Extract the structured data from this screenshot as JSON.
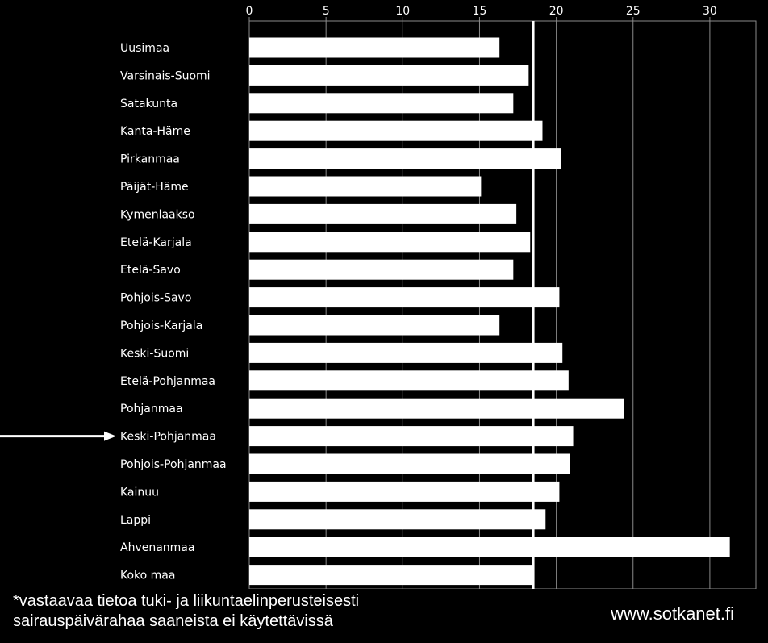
{
  "chart_data": {
    "type": "bar",
    "orientation": "horizontal",
    "categories": [
      "Uusimaa",
      "Varsinais-Suomi",
      "Satakunta",
      "Kanta-Häme",
      "Pirkanmaa",
      "Päijät-Häme",
      "Kymenlaakso",
      "Etelä-Karjala",
      "Etelä-Savo",
      "Pohjois-Savo",
      "Pohjois-Karjala",
      "Keski-Suomi",
      "Etelä-Pohjanmaa",
      "Pohjanmaa",
      "Keski-Pohjanmaa",
      "Pohjois-Pohjanmaa",
      "Kainuu",
      "Lappi",
      "Ahvenanmaa",
      "Koko maa"
    ],
    "values": [
      16.3,
      18.2,
      17.2,
      19.1,
      20.3,
      15.1,
      17.4,
      18.3,
      17.2,
      20.2,
      16.3,
      20.4,
      20.8,
      24.4,
      21.1,
      20.9,
      20.2,
      19.3,
      31.3,
      18.5
    ],
    "xlim": [
      0,
      33
    ],
    "xticks": [
      0,
      5,
      10,
      15,
      20,
      25,
      30
    ],
    "reference_line": 18.5,
    "highlighted_category": "Keski-Pohjanmaa",
    "grid": true,
    "colors": {
      "background": "#000000",
      "bars": "#ffffff",
      "grid": "#8a8a8a",
      "text": "#ffffff"
    }
  },
  "footnote": {
    "line1": "*vastaavaa tietoa tuki- ja liikuntaelinperusteisesti",
    "line2": "sairauspäivärahaa saaneista ei käytettävissä"
  },
  "source": "www.sotkanet.fi"
}
